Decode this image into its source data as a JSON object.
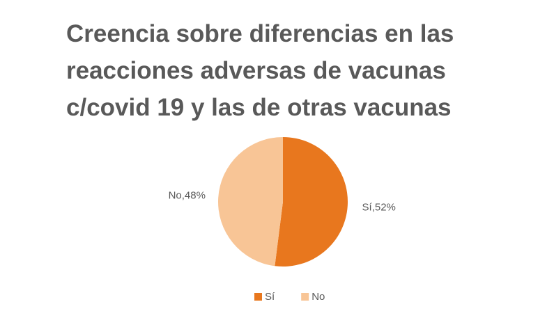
{
  "chart_data": {
    "type": "pie",
    "title": "Creencia sobre diferencias en las reacciones adversas de vacunas c/covid 19 y las de otras vacunas",
    "categories": [
      "Sí",
      "No"
    ],
    "values": [
      52,
      48
    ],
    "value_labels": [
      "Sí,52%",
      "No,48%"
    ],
    "colors": [
      "#e8771e",
      "#f8c596"
    ],
    "legend": "bottom"
  }
}
